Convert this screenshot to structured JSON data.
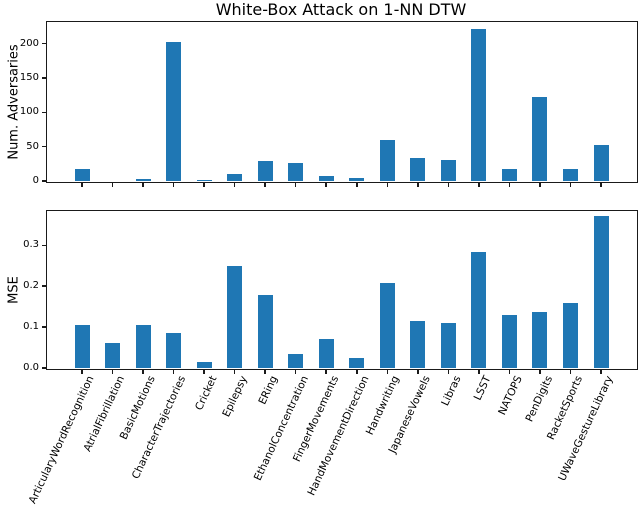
{
  "figure": {
    "title": "White-Box Attack on 1-NN DTW",
    "bar_color": "#1f77b4",
    "text_color": "#000000",
    "spine_color": "#1a1a1a"
  },
  "chart_data": [
    {
      "type": "bar",
      "title": "White-Box Attack on 1-NN DTW",
      "ylabel": "Num. Adversaries",
      "xlabel": "",
      "grid": false,
      "legend_position": "none",
      "ylim": [
        0,
        231.6
      ],
      "yticks": [
        0,
        50,
        100,
        150,
        200
      ],
      "ytick_labels": [
        "0",
        "50",
        "100",
        "150",
        "200"
      ],
      "show_xtick_labels": false,
      "categories": [
        "ArticularyWordRecognition",
        "AtrialFibrillation",
        "BasicMotions",
        "CharacterTrajectories",
        "Cricket",
        "Epilepsy",
        "ERing",
        "EthanolConcentration",
        "FingerMovements",
        "HandMovementDirection",
        "Handwriting",
        "JapaneseVowels",
        "Libras",
        "LSST",
        "NATOPS",
        "PenDigits",
        "RacketSports",
        "UWaveGestureLibrary"
      ],
      "values": [
        18,
        0,
        3,
        203,
        2,
        10,
        29,
        26,
        7,
        5,
        60,
        33,
        31,
        221,
        17,
        123,
        17,
        53
      ]
    },
    {
      "type": "bar",
      "title": "",
      "ylabel": "MSE",
      "xlabel": "",
      "grid": false,
      "legend_position": "none",
      "ylim": [
        0,
        0.384
      ],
      "yticks": [
        0,
        0.1,
        0.2,
        0.3
      ],
      "ytick_labels": [
        "0.0",
        "0.1",
        "0.2",
        "0.3"
      ],
      "show_xtick_labels": true,
      "categories": [
        "ArticularyWordRecognition",
        "AtrialFibrillation",
        "BasicMotions",
        "CharacterTrajectories",
        "Cricket",
        "Epilepsy",
        "ERing",
        "EthanolConcentration",
        "FingerMovements",
        "HandMovementDirection",
        "Handwriting",
        "JapaneseVowels",
        "Libras",
        "LSST",
        "NATOPS",
        "PenDigits",
        "RacketSports",
        "UWaveGestureLibrary"
      ],
      "values": [
        0.105,
        0.062,
        0.105,
        0.085,
        0.014,
        0.25,
        0.178,
        0.035,
        0.072,
        0.024,
        0.208,
        0.116,
        0.111,
        0.283,
        0.13,
        0.138,
        0.16,
        0.371
      ]
    }
  ]
}
